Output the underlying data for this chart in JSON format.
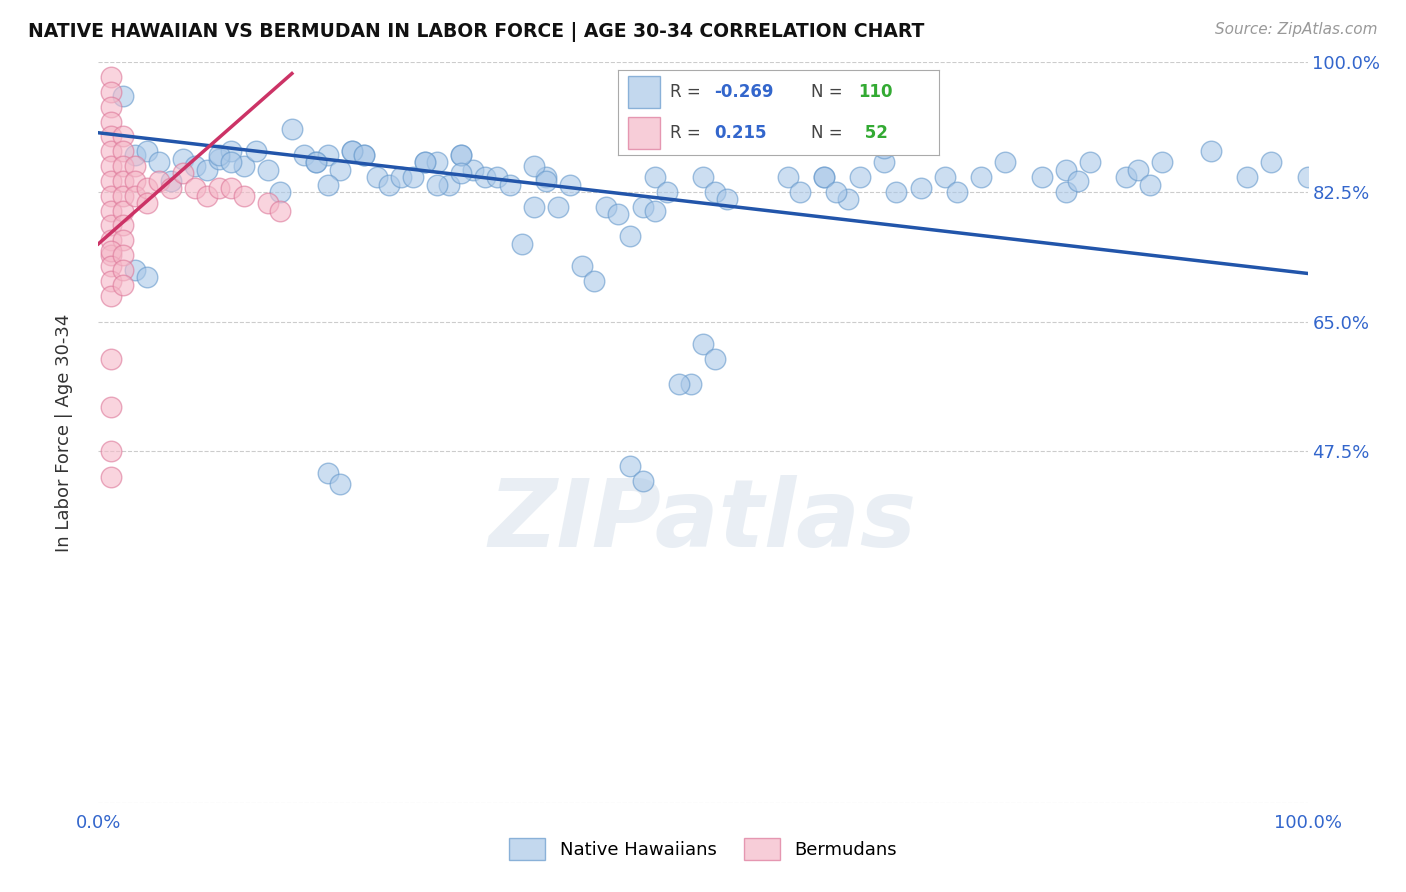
{
  "title": "NATIVE HAWAIIAN VS BERMUDAN IN LABOR FORCE | AGE 30-34 CORRELATION CHART",
  "source": "Source: ZipAtlas.com",
  "ylabel": "In Labor Force | Age 30-34",
  "xlim": [
    0.0,
    1.0
  ],
  "ylim": [
    0.0,
    1.0
  ],
  "background_color": "#ffffff",
  "blue_color": "#aac8e8",
  "blue_edge_color": "#6699cc",
  "pink_color": "#f5b8c8",
  "pink_edge_color": "#dd7799",
  "blue_line_color": "#2255aa",
  "pink_line_color": "#cc3366",
  "grid_color": "#cccccc",
  "watermark": "ZIPatlas",
  "figsize": [
    14.06,
    8.92
  ],
  "dpi": 100,
  "blue_x": [
    0.02,
    0.03,
    0.04,
    0.05,
    0.06,
    0.07,
    0.08,
    0.09,
    0.1,
    0.11,
    0.12,
    0.13,
    0.14,
    0.15,
    0.16,
    0.17,
    0.18,
    0.19,
    0.2,
    0.21,
    0.22,
    0.23,
    0.24,
    0.25,
    0.26,
    0.27,
    0.28,
    0.29,
    0.3,
    0.31,
    0.32,
    0.33,
    0.34,
    0.35,
    0.36,
    0.37,
    0.38,
    0.39,
    0.4,
    0.41,
    0.42,
    0.43,
    0.44,
    0.45,
    0.46,
    0.47,
    0.49,
    0.5,
    0.51,
    0.52,
    0.55,
    0.57,
    0.58,
    0.6,
    0.62,
    0.63,
    0.65,
    0.66,
    0.68,
    0.7,
    0.71,
    0.73,
    0.75,
    0.78,
    0.8,
    0.82,
    0.85,
    0.88,
    0.92,
    0.95,
    0.97,
    1.0,
    0.18,
    0.19,
    0.27,
    0.28,
    0.3,
    0.3,
    0.36,
    0.37,
    0.21,
    0.22,
    0.1,
    0.11,
    0.6,
    0.61,
    0.5,
    0.51,
    0.44,
    0.45,
    0.03,
    0.04,
    0.19,
    0.2,
    0.65,
    0.8,
    0.81,
    0.86,
    0.87,
    0.46,
    0.48
  ],
  "blue_y": [
    0.955,
    0.875,
    0.88,
    0.865,
    0.84,
    0.87,
    0.86,
    0.855,
    0.87,
    0.88,
    0.86,
    0.88,
    0.855,
    0.825,
    0.91,
    0.875,
    0.865,
    0.875,
    0.855,
    0.88,
    0.875,
    0.845,
    0.835,
    0.845,
    0.845,
    0.865,
    0.865,
    0.835,
    0.875,
    0.855,
    0.845,
    0.845,
    0.835,
    0.755,
    0.805,
    0.845,
    0.805,
    0.835,
    0.725,
    0.705,
    0.805,
    0.795,
    0.765,
    0.805,
    0.845,
    0.825,
    0.565,
    0.845,
    0.825,
    0.815,
    0.905,
    0.845,
    0.825,
    0.845,
    0.815,
    0.845,
    0.865,
    0.825,
    0.83,
    0.845,
    0.825,
    0.845,
    0.865,
    0.845,
    0.825,
    0.865,
    0.845,
    0.865,
    0.88,
    0.845,
    0.865,
    0.845,
    0.865,
    0.835,
    0.865,
    0.835,
    0.875,
    0.85,
    0.86,
    0.84,
    0.88,
    0.875,
    0.875,
    0.865,
    0.845,
    0.825,
    0.62,
    0.6,
    0.455,
    0.435,
    0.72,
    0.71,
    0.445,
    0.43,
    0.885,
    0.855,
    0.84,
    0.855,
    0.835,
    0.8,
    0.565
  ],
  "pink_x": [
    0.01,
    0.01,
    0.01,
    0.01,
    0.01,
    0.01,
    0.01,
    0.01,
    0.01,
    0.01,
    0.01,
    0.01,
    0.01,
    0.02,
    0.02,
    0.02,
    0.02,
    0.02,
    0.02,
    0.02,
    0.02,
    0.03,
    0.03,
    0.03,
    0.04,
    0.04,
    0.05,
    0.06,
    0.07,
    0.08,
    0.09,
    0.1,
    0.11,
    0.12,
    0.14,
    0.15,
    0.01,
    0.01,
    0.01,
    0.01,
    0.02,
    0.02,
    0.02,
    0.01,
    0.01,
    0.01,
    0.01
  ],
  "pink_y": [
    0.98,
    0.96,
    0.94,
    0.92,
    0.9,
    0.88,
    0.86,
    0.84,
    0.82,
    0.8,
    0.78,
    0.76,
    0.74,
    0.9,
    0.88,
    0.86,
    0.84,
    0.82,
    0.8,
    0.78,
    0.76,
    0.86,
    0.84,
    0.82,
    0.83,
    0.81,
    0.84,
    0.83,
    0.85,
    0.83,
    0.82,
    0.83,
    0.83,
    0.82,
    0.81,
    0.8,
    0.745,
    0.725,
    0.705,
    0.685,
    0.74,
    0.72,
    0.7,
    0.6,
    0.535,
    0.475,
    0.44
  ],
  "blue_line_x0": 0.0,
  "blue_line_y0": 0.905,
  "blue_line_x1": 1.0,
  "blue_line_y1": 0.715,
  "pink_line_x0": 0.0,
  "pink_line_y0": 0.755,
  "pink_line_x1": 0.16,
  "pink_line_y1": 0.985
}
